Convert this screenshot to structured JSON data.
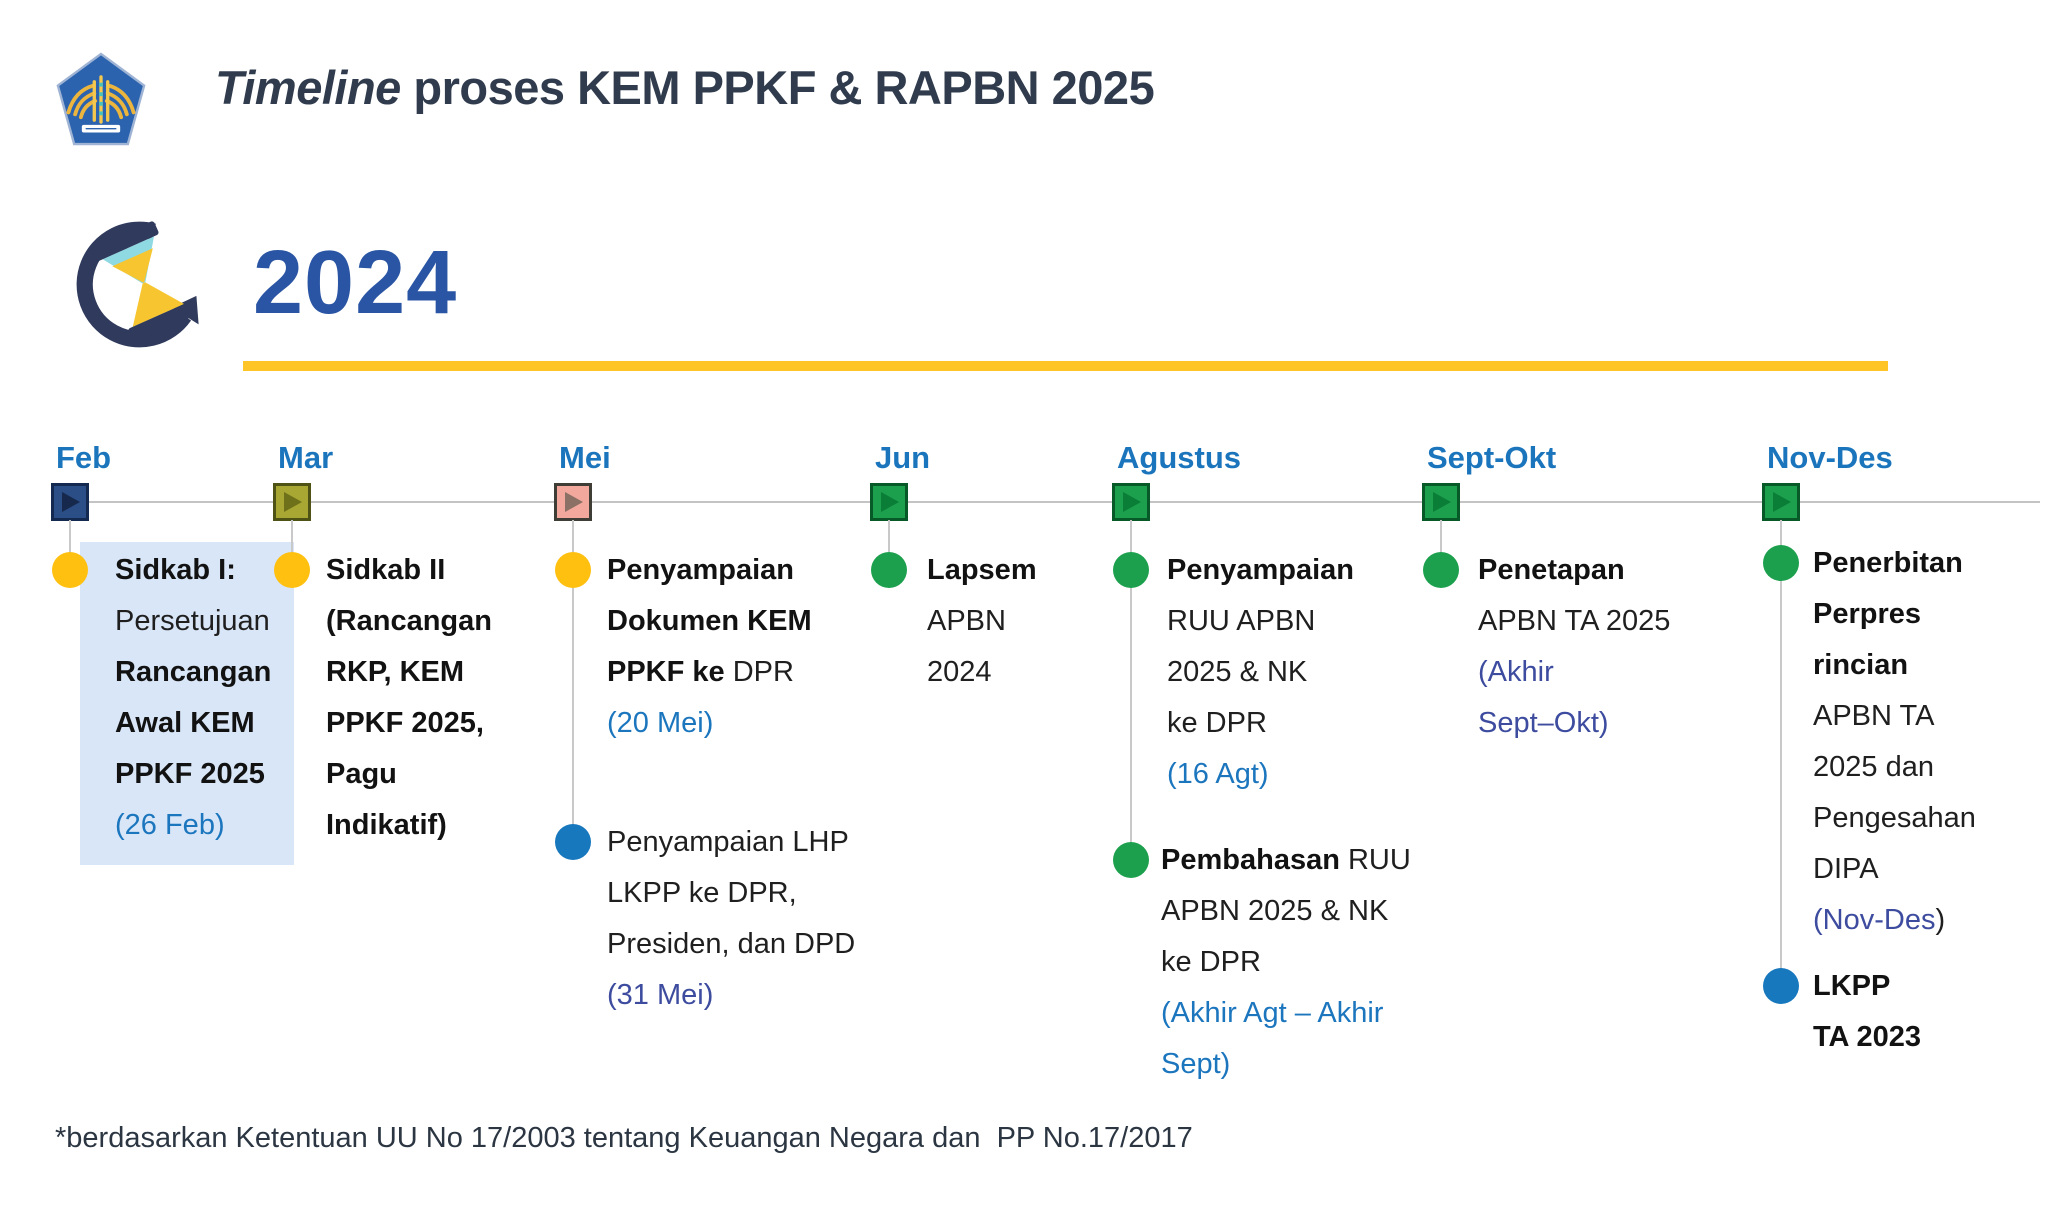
{
  "header": {
    "title_italic": "Timeline",
    "title_rest": " proses KEM PPKF & RAPBN 2025"
  },
  "year": {
    "label": "2024"
  },
  "footnote": {
    "text": "*berdasarkan Ketentuan UU No 17/2003 tentang Keuangan Negara dan  PP No.17/2017"
  },
  "colors": {
    "accent_yellow": "#ffc425",
    "month_label_blue": "#1b75bc",
    "year_blue": "#2a55a4",
    "date_blue": "#1c76be",
    "date_indigo": "#3d4c9f",
    "highlight_bg": "#d8e6f8",
    "bullets": {
      "yellow": "#ffc010",
      "blue": "#1878be",
      "green": "#1ca04e"
    }
  },
  "timeline": {
    "months": [
      {
        "label": "Feb",
        "marker": {
          "fill": "#2b4e86",
          "border": "#132950",
          "arrow": "#16294d"
        },
        "events": [
          {
            "bullet": "yellow",
            "highlight": true,
            "lines": [
              [
                {
                  "t": "Sidkab I:",
                  "s": "b"
                }
              ],
              [
                {
                  "t": "Persetujuan",
                  "s": "n"
                }
              ],
              [
                {
                  "t": "Rancangan",
                  "s": "b"
                }
              ],
              [
                {
                  "t": "Awal KEM",
                  "s": "b"
                }
              ],
              [
                {
                  "t": "PPKF 2025",
                  "s": "b"
                }
              ],
              [
                {
                  "t": "(26 Feb)",
                  "s": "d"
                }
              ]
            ]
          }
        ]
      },
      {
        "label": "Mar",
        "marker": {
          "fill": "#a9a733",
          "border": "#4f5215",
          "arrow": "#6e7119"
        },
        "events": [
          {
            "bullet": "yellow",
            "lines": [
              [
                {
                  "t": "Sidkab II",
                  "s": "b"
                }
              ],
              [
                {
                  "t": "(Rancangan",
                  "s": "b"
                }
              ],
              [
                {
                  "t": "RKP, KEM",
                  "s": "b"
                }
              ],
              [
                {
                  "t": "PPKF 2025,",
                  "s": "b"
                }
              ],
              [
                {
                  "t": "Pagu",
                  "s": "b"
                }
              ],
              [
                {
                  "t": "Indikatif)",
                  "s": "b"
                }
              ]
            ]
          }
        ]
      },
      {
        "label": "Mei",
        "marker": {
          "fill": "#f2a89d",
          "border": "#3e3e36",
          "arrow": "#8a7065"
        },
        "events": [
          {
            "bullet": "yellow",
            "lines": [
              [
                {
                  "t": "Penyampaian",
                  "s": "b"
                }
              ],
              [
                {
                  "t": "Dokumen KEM",
                  "s": "b"
                }
              ],
              [
                {
                  "t": "PPKF ke",
                  "s": "b"
                },
                {
                  "t": " DPR",
                  "s": "n"
                }
              ],
              [
                {
                  "t": "(20 Mei)",
                  "s": "d"
                }
              ]
            ]
          },
          {
            "bullet": "blue",
            "lines": [
              [
                {
                  "t": "Penyampaian LHP",
                  "s": "n"
                }
              ],
              [
                {
                  "t": "LKPP ke DPR,",
                  "s": "n"
                }
              ],
              [
                {
                  "t": "Presiden, dan DPD",
                  "s": "n"
                }
              ],
              [
                {
                  "t": "(31 Mei)",
                  "s": "i"
                }
              ]
            ]
          }
        ]
      },
      {
        "label": "Jun",
        "marker": {
          "fill": "#1ca04e",
          "border": "#075a28",
          "arrow": "#0a7d36"
        },
        "events": [
          {
            "bullet": "green",
            "lines": [
              [
                {
                  "t": "Lapsem",
                  "s": "b"
                }
              ],
              [
                {
                  "t": "APBN",
                  "s": "n"
                }
              ],
              [
                {
                  "t": "2024",
                  "s": "n"
                }
              ]
            ]
          }
        ]
      },
      {
        "label": "Agustus",
        "marker": {
          "fill": "#1ca04e",
          "border": "#075a28",
          "arrow": "#0a7d36"
        },
        "events": [
          {
            "bullet": "green",
            "lines": [
              [
                {
                  "t": "Penyampaian",
                  "s": "b"
                }
              ],
              [
                {
                  "t": "RUU APBN",
                  "s": "n"
                }
              ],
              [
                {
                  "t": "2025 & NK",
                  "s": "n"
                }
              ],
              [
                {
                  "t": "ke DPR",
                  "s": "n"
                }
              ],
              [
                {
                  "t": "(16 Agt)",
                  "s": "d"
                }
              ]
            ]
          },
          {
            "bullet": "green",
            "lines": [
              [
                {
                  "t": "Pembahasan",
                  "s": "b"
                },
                {
                  "t": " RUU",
                  "s": "n"
                }
              ],
              [
                {
                  "t": "APBN 2025 & NK",
                  "s": "n"
                }
              ],
              [
                {
                  "t": "ke DPR",
                  "s": "n"
                }
              ],
              [
                {
                  "t": "(Akhir Agt – Akhir",
                  "s": "d"
                }
              ],
              [
                {
                  "t": "Sept)",
                  "s": "d"
                }
              ]
            ]
          }
        ]
      },
      {
        "label": "Sept-Okt",
        "marker": {
          "fill": "#1ca04e",
          "border": "#075a28",
          "arrow": "#0a7d36"
        },
        "events": [
          {
            "bullet": "green",
            "lines": [
              [
                {
                  "t": "Penetapan",
                  "s": "b"
                }
              ],
              [
                {
                  "t": "APBN TA 2025",
                  "s": "n"
                }
              ],
              [
                {
                  "t": "(Akhir",
                  "s": "i"
                }
              ],
              [
                {
                  "t": "Sept–Okt)",
                  "s": "i"
                }
              ]
            ]
          }
        ]
      },
      {
        "label": "Nov-Des",
        "marker": {
          "fill": "#1ca04e",
          "border": "#075a28",
          "arrow": "#0a7d36"
        },
        "events": [
          {
            "bullet": "green",
            "lines": [
              [
                {
                  "t": "Penerbitan",
                  "s": "b"
                }
              ],
              [
                {
                  "t": "Perpres",
                  "s": "b"
                }
              ],
              [
                {
                  "t": "rincian",
                  "s": "b"
                }
              ],
              [
                {
                  "t": "APBN TA",
                  "s": "n"
                }
              ],
              [
                {
                  "t": "2025 dan",
                  "s": "n"
                }
              ],
              [
                {
                  "t": "Pengesahan",
                  "s": "n"
                }
              ],
              [
                {
                  "t": "DIPA",
                  "s": "n"
                }
              ],
              [
                {
                  "t": "(Nov-Des",
                  "s": "i"
                },
                {
                  "t": ")",
                  "s": "n"
                }
              ]
            ]
          },
          {
            "bullet": "blue",
            "lines": [
              [
                {
                  "t": "LKPP",
                  "s": "b"
                }
              ],
              [
                {
                  "t": "TA 2023",
                  "s": "b"
                }
              ]
            ]
          }
        ]
      }
    ]
  }
}
